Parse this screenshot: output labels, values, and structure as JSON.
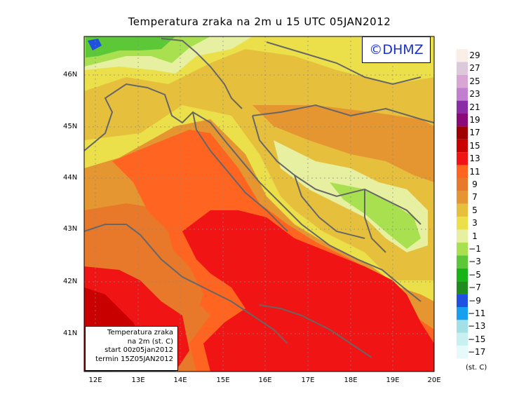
{
  "title": "Temperatura zraka na 2m u 15 UTC 05JAN2012",
  "logo_text": "©DHMZ",
  "info": [
    "Temperatura zraka",
    "na 2m (st. C)",
    "start 00z05jan2012",
    "termin 15Z05JAN2012"
  ],
  "lat_labels": [
    "46N",
    "45N",
    "44N",
    "43N",
    "42N",
    "41N"
  ],
  "lon_labels": [
    "12E",
    "13E",
    "14E",
    "15E",
    "16E",
    "17E",
    "18E",
    "19E",
    "20E"
  ],
  "colorbar": {
    "labels": [
      "29",
      "27",
      "25",
      "23",
      "21",
      "19",
      "17",
      "15",
      "13",
      "11",
      "9",
      "7",
      "5",
      "3",
      "1",
      "−1",
      "−3",
      "−5",
      "−7",
      "−9",
      "−11",
      "−13",
      "−15",
      "−17"
    ],
    "colors": [
      "#fbeee6",
      "#ddc8dc",
      "#d7a6d5",
      "#c27fd0",
      "#8a2ca6",
      "#8a0a7a",
      "#9e0000",
      "#c80000",
      "#f01414",
      "#ff6420",
      "#e8782a",
      "#e69630",
      "#e6c03c",
      "#ebe04a",
      "#e6f0a0",
      "#a8e050",
      "#5cc838",
      "#16b416",
      "#1e8c1e",
      "#2050e0",
      "#18a0f0",
      "#a0e0e6",
      "#c8f0f0",
      "#e6fafa"
    ],
    "unit": "(st. C)"
  }
}
